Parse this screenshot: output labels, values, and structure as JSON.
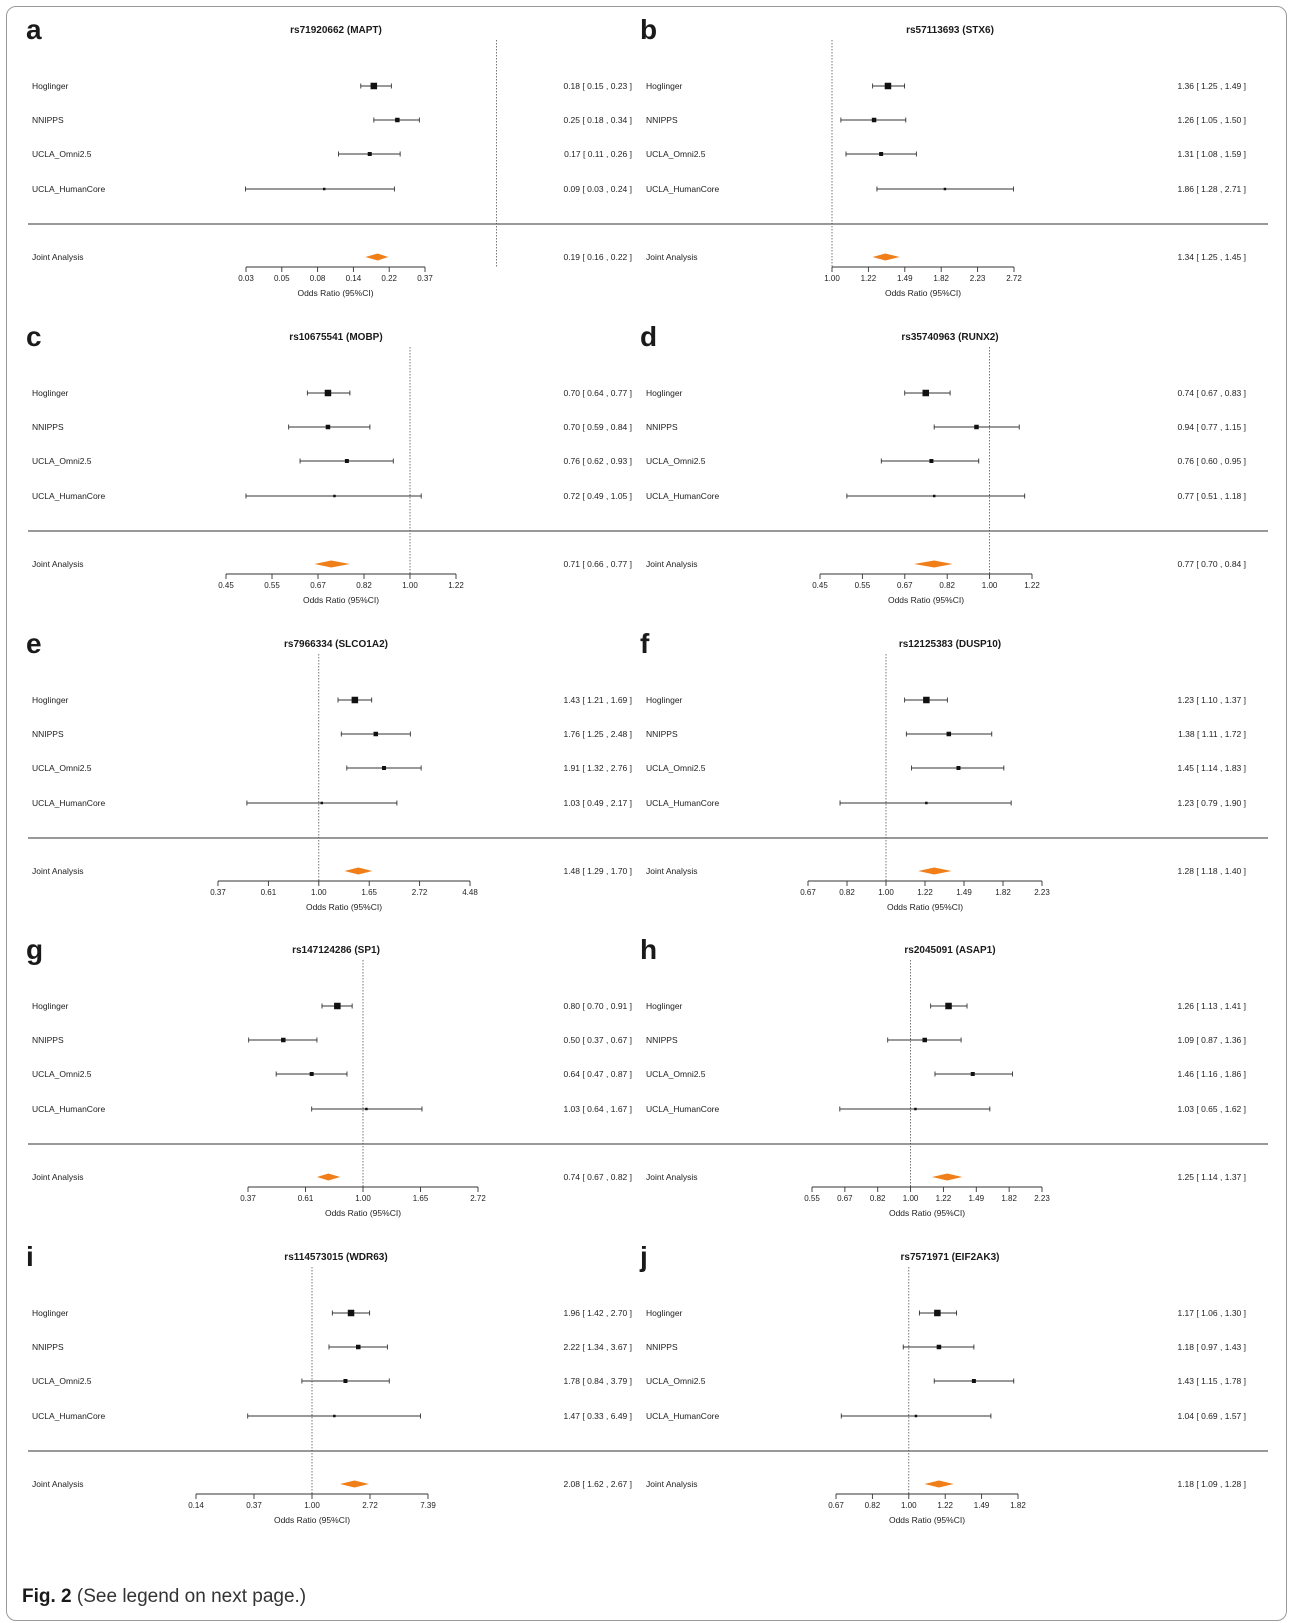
{
  "caption": {
    "label": "Fig. 2",
    "text": "(See legend on next page.)"
  },
  "chart_data": [
    {
      "type": "forest",
      "panel": "a",
      "title": "rs71920662 (MAPT)",
      "xlabel": "Odds Ratio (95%CI)",
      "ticks": [
        "0.03",
        "0.05",
        "0.08",
        "0.14",
        "0.22",
        "0.37"
      ],
      "ticks_ln": [
        -3.5,
        -3.0,
        -2.5,
        -2.0,
        -1.5,
        -1.0
      ],
      "ref": 1.0,
      "studies": [
        {
          "name": "Hoglinger",
          "or": 0.18,
          "lo": 0.15,
          "hi": 0.23,
          "text": "0.18 [ 0.15 , 0.23 ]"
        },
        {
          "name": "NNIPPS",
          "or": 0.25,
          "lo": 0.18,
          "hi": 0.34,
          "text": "0.25 [ 0.18 , 0.34 ]"
        },
        {
          "name": "UCLA_Omni2.5",
          "or": 0.17,
          "lo": 0.11,
          "hi": 0.26,
          "text": "0.17 [ 0.11 , 0.26 ]"
        },
        {
          "name": "UCLA_HumanCore",
          "or": 0.09,
          "lo": 0.03,
          "hi": 0.24,
          "text": "0.09 [ 0.03 , 0.24 ]"
        }
      ],
      "joint": {
        "name": "Joint Analysis",
        "or": 0.19,
        "lo": 0.16,
        "hi": 0.22,
        "text": "0.19 [ 0.16 , 0.22 ]"
      }
    },
    {
      "type": "forest",
      "panel": "b",
      "title": "rs57113693 (STX6)",
      "xlabel": "Odds Ratio (95%CI)",
      "ticks": [
        "1.00",
        "1.22",
        "1.49",
        "1.82",
        "2.23",
        "2.72"
      ],
      "ticks_ln": [
        0,
        0.2,
        0.4,
        0.6,
        0.8,
        1.0
      ],
      "ref": 1.0,
      "studies": [
        {
          "name": "Hoglinger",
          "or": 1.36,
          "lo": 1.25,
          "hi": 1.49,
          "text": "1.36 [ 1.25 , 1.49 ]"
        },
        {
          "name": "NNIPPS",
          "or": 1.26,
          "lo": 1.05,
          "hi": 1.5,
          "text": "1.26 [ 1.05 , 1.50 ]"
        },
        {
          "name": "UCLA_Omni2.5",
          "or": 1.31,
          "lo": 1.08,
          "hi": 1.59,
          "text": "1.31 [ 1.08 , 1.59 ]"
        },
        {
          "name": "UCLA_HumanCore",
          "or": 1.86,
          "lo": 1.28,
          "hi": 2.71,
          "text": "1.86 [ 1.28 , 2.71 ]"
        }
      ],
      "joint": {
        "name": "Joint Analysis",
        "or": 1.34,
        "lo": 1.25,
        "hi": 1.45,
        "text": "1.34 [ 1.25 , 1.45 ]"
      }
    },
    {
      "type": "forest",
      "panel": "c",
      "title": "rs10675541 (MOBP)",
      "xlabel": "Odds Ratio (95%CI)",
      "ticks": [
        "0.45",
        "0.55",
        "0.67",
        "0.82",
        "1.00",
        "1.22"
      ],
      "ticks_ln": [
        -0.8,
        -0.6,
        -0.4,
        -0.2,
        0,
        0.2
      ],
      "ref": 1.0,
      "studies": [
        {
          "name": "Hoglinger",
          "or": 0.7,
          "lo": 0.64,
          "hi": 0.77,
          "text": "0.70 [ 0.64 , 0.77 ]"
        },
        {
          "name": "NNIPPS",
          "or": 0.7,
          "lo": 0.59,
          "hi": 0.84,
          "text": "0.70 [ 0.59 , 0.84 ]"
        },
        {
          "name": "UCLA_Omni2.5",
          "or": 0.76,
          "lo": 0.62,
          "hi": 0.93,
          "text": "0.76 [ 0.62 , 0.93 ]"
        },
        {
          "name": "UCLA_HumanCore",
          "or": 0.72,
          "lo": 0.49,
          "hi": 1.05,
          "text": "0.72 [ 0.49 , 1.05 ]"
        }
      ],
      "joint": {
        "name": "Joint Analysis",
        "or": 0.71,
        "lo": 0.66,
        "hi": 0.77,
        "text": "0.71 [ 0.66 , 0.77 ]"
      }
    },
    {
      "type": "forest",
      "panel": "d",
      "title": "rs35740963 (RUNX2)",
      "xlabel": "Odds Ratio (95%CI)",
      "ticks": [
        "0.45",
        "0.55",
        "0.67",
        "0.82",
        "1.00",
        "1.22"
      ],
      "ticks_ln": [
        -0.8,
        -0.6,
        -0.4,
        -0.2,
        0,
        0.2
      ],
      "ref": 1.0,
      "studies": [
        {
          "name": "Hoglinger",
          "or": 0.74,
          "lo": 0.67,
          "hi": 0.83,
          "text": "0.74 [ 0.67 , 0.83 ]"
        },
        {
          "name": "NNIPPS",
          "or": 0.94,
          "lo": 0.77,
          "hi": 1.15,
          "text": "0.94 [ 0.77 , 1.15 ]"
        },
        {
          "name": "UCLA_Omni2.5",
          "or": 0.76,
          "lo": 0.6,
          "hi": 0.95,
          "text": "0.76 [ 0.60 , 0.95 ]"
        },
        {
          "name": "UCLA_HumanCore",
          "or": 0.77,
          "lo": 0.51,
          "hi": 1.18,
          "text": "0.77 [ 0.51 , 1.18 ]"
        }
      ],
      "joint": {
        "name": "Joint Analysis",
        "or": 0.77,
        "lo": 0.7,
        "hi": 0.84,
        "text": "0.77 [ 0.70 , 0.84 ]"
      }
    },
    {
      "type": "forest",
      "panel": "e",
      "title": "rs7966334 (SLCO1A2)",
      "xlabel": "Odds Ratio (95%CI)",
      "ticks": [
        "0.37",
        "0.61",
        "1.00",
        "1.65",
        "2.72",
        "4.48"
      ],
      "ticks_ln": [
        -1.0,
        -0.5,
        0,
        0.5,
        1.0,
        1.5
      ],
      "ref": 1.0,
      "studies": [
        {
          "name": "Hoglinger",
          "or": 1.43,
          "lo": 1.21,
          "hi": 1.69,
          "text": "1.43 [ 1.21 , 1.69 ]"
        },
        {
          "name": "NNIPPS",
          "or": 1.76,
          "lo": 1.25,
          "hi": 2.48,
          "text": "1.76 [ 1.25 , 2.48 ]"
        },
        {
          "name": "UCLA_Omni2.5",
          "or": 1.91,
          "lo": 1.32,
          "hi": 2.76,
          "text": "1.91 [ 1.32 , 2.76 ]"
        },
        {
          "name": "UCLA_HumanCore",
          "or": 1.03,
          "lo": 0.49,
          "hi": 2.17,
          "text": "1.03 [ 0.49 , 2.17 ]"
        }
      ],
      "joint": {
        "name": "Joint Analysis",
        "or": 1.48,
        "lo": 1.29,
        "hi": 1.7,
        "text": "1.48 [ 1.29 , 1.70 ]"
      }
    },
    {
      "type": "forest",
      "panel": "f",
      "title": "rs12125383 (DUSP10)",
      "xlabel": "Odds Ratio (95%CI)",
      "ticks": [
        "0.67",
        "0.82",
        "1.00",
        "1.22",
        "1.49",
        "1.82",
        "2.23"
      ],
      "ticks_ln": [
        -0.4,
        -0.2,
        0,
        0.2,
        0.4,
        0.6,
        0.8
      ],
      "ref": 1.0,
      "studies": [
        {
          "name": "Hoglinger",
          "or": 1.23,
          "lo": 1.1,
          "hi": 1.37,
          "text": "1.23 [ 1.10 , 1.37 ]"
        },
        {
          "name": "NNIPPS",
          "or": 1.38,
          "lo": 1.11,
          "hi": 1.72,
          "text": "1.38 [ 1.11 , 1.72 ]"
        },
        {
          "name": "UCLA_Omni2.5",
          "or": 1.45,
          "lo": 1.14,
          "hi": 1.83,
          "text": "1.45 [ 1.14 , 1.83 ]"
        },
        {
          "name": "UCLA_HumanCore",
          "or": 1.23,
          "lo": 0.79,
          "hi": 1.9,
          "text": "1.23 [ 0.79 , 1.90 ]"
        }
      ],
      "joint": {
        "name": "Joint Analysis",
        "or": 1.28,
        "lo": 1.18,
        "hi": 1.4,
        "text": "1.28 [ 1.18 , 1.40 ]"
      }
    },
    {
      "type": "forest",
      "panel": "g",
      "title": "rs147124286 (SP1)",
      "xlabel": "Odds Ratio (95%CI)",
      "ticks": [
        "0.37",
        "0.61",
        "1.00",
        "1.65",
        "2.72"
      ],
      "ticks_ln": [
        -1.0,
        -0.5,
        0,
        0.5,
        1.0
      ],
      "ref": 1.0,
      "studies": [
        {
          "name": "Hoglinger",
          "or": 0.8,
          "lo": 0.7,
          "hi": 0.91,
          "text": "0.80 [ 0.70 , 0.91 ]"
        },
        {
          "name": "NNIPPS",
          "or": 0.5,
          "lo": 0.37,
          "hi": 0.67,
          "text": "0.50 [ 0.37 , 0.67 ]"
        },
        {
          "name": "UCLA_Omni2.5",
          "or": 0.64,
          "lo": 0.47,
          "hi": 0.87,
          "text": "0.64 [ 0.47 , 0.87 ]"
        },
        {
          "name": "UCLA_HumanCore",
          "or": 1.03,
          "lo": 0.64,
          "hi": 1.67,
          "text": "1.03 [ 0.64 , 1.67 ]"
        }
      ],
      "joint": {
        "name": "Joint Analysis",
        "or": 0.74,
        "lo": 0.67,
        "hi": 0.82,
        "text": "0.74 [ 0.67 , 0.82 ]"
      }
    },
    {
      "type": "forest",
      "panel": "h",
      "title": "rs2045091 (ASAP1)",
      "xlabel": "Odds Ratio (95%CI)",
      "ticks": [
        "0.55",
        "0.67",
        "0.82",
        "1.00",
        "1.22",
        "1.49",
        "1.82",
        "2.23"
      ],
      "ticks_ln": [
        -0.6,
        -0.4,
        -0.2,
        0,
        0.2,
        0.4,
        0.6,
        0.8
      ],
      "ref": 1.0,
      "studies": [
        {
          "name": "Hoglinger",
          "or": 1.26,
          "lo": 1.13,
          "hi": 1.41,
          "text": "1.26 [ 1.13 , 1.41 ]"
        },
        {
          "name": "NNIPPS",
          "or": 1.09,
          "lo": 0.87,
          "hi": 1.36,
          "text": "1.09 [ 0.87 , 1.36 ]"
        },
        {
          "name": "UCLA_Omni2.5",
          "or": 1.46,
          "lo": 1.16,
          "hi": 1.86,
          "text": "1.46 [ 1.16 , 1.86 ]"
        },
        {
          "name": "UCLA_HumanCore",
          "or": 1.03,
          "lo": 0.65,
          "hi": 1.62,
          "text": "1.03 [ 0.65 , 1.62 ]"
        }
      ],
      "joint": {
        "name": "Joint Analysis",
        "or": 1.25,
        "lo": 1.14,
        "hi": 1.37,
        "text": "1.25 [ 1.14 , 1.37 ]"
      }
    },
    {
      "type": "forest",
      "panel": "i",
      "title": "rs114573015 (WDR63)",
      "xlabel": "Odds Ratio (95%CI)",
      "ticks": [
        "0.14",
        "0.37",
        "1.00",
        "2.72",
        "7.39"
      ],
      "ticks_ln": [
        -2,
        -1,
        0,
        1,
        2
      ],
      "ref": 1.0,
      "studies": [
        {
          "name": "Hoglinger",
          "or": 1.96,
          "lo": 1.42,
          "hi": 2.7,
          "text": "1.96 [ 1.42 , 2.70 ]"
        },
        {
          "name": "NNIPPS",
          "or": 2.22,
          "lo": 1.34,
          "hi": 3.67,
          "text": "2.22 [ 1.34 , 3.67 ]"
        },
        {
          "name": "UCLA_Omni2.5",
          "or": 1.78,
          "lo": 0.84,
          "hi": 3.79,
          "text": "1.78 [ 0.84 , 3.79 ]"
        },
        {
          "name": "UCLA_HumanCore",
          "or": 1.47,
          "lo": 0.33,
          "hi": 6.49,
          "text": "1.47 [ 0.33 , 6.49 ]"
        }
      ],
      "joint": {
        "name": "Joint Analysis",
        "or": 2.08,
        "lo": 1.62,
        "hi": 2.67,
        "text": "2.08 [ 1.62 , 2.67 ]"
      }
    },
    {
      "type": "forest",
      "panel": "j",
      "title": "rs7571971 (EIF2AK3)",
      "xlabel": "Odds Ratio (95%CI)",
      "ticks": [
        "0.67",
        "0.82",
        "1.00",
        "1.22",
        "1.49",
        "1.82"
      ],
      "ticks_ln": [
        -0.4,
        -0.2,
        0,
        0.2,
        0.4,
        0.6
      ],
      "ref": 1.0,
      "studies": [
        {
          "name": "Hoglinger",
          "or": 1.17,
          "lo": 1.06,
          "hi": 1.3,
          "text": "1.17 [ 1.06 , 1.30 ]"
        },
        {
          "name": "NNIPPS",
          "or": 1.18,
          "lo": 0.97,
          "hi": 1.43,
          "text": "1.18 [ 0.97 , 1.43 ]"
        },
        {
          "name": "UCLA_Omni2.5",
          "or": 1.43,
          "lo": 1.15,
          "hi": 1.78,
          "text": "1.43 [ 1.15 , 1.78 ]"
        },
        {
          "name": "UCLA_HumanCore",
          "or": 1.04,
          "lo": 0.69,
          "hi": 1.57,
          "text": "1.04 [ 0.69 , 1.57 ]"
        }
      ],
      "joint": {
        "name": "Joint Analysis",
        "or": 1.18,
        "lo": 1.09,
        "hi": 1.28,
        "text": "1.18 [ 1.09 , 1.28 ]"
      }
    }
  ],
  "colors": {
    "joint_diamond": "#F07F1A",
    "marker": "#111111",
    "line": "#333333"
  }
}
